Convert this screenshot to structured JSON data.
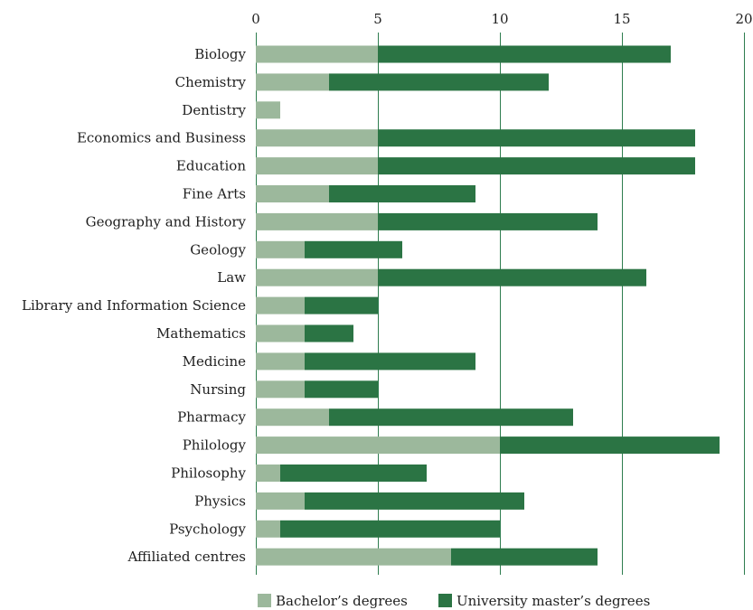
{
  "chart_data": {
    "type": "bar",
    "orientation": "horizontal",
    "stacked": true,
    "xlim": [
      0,
      20
    ],
    "x_ticks": [
      "0",
      "5",
      "10",
      "15",
      "20"
    ],
    "x_tick_values": [
      0,
      5,
      10,
      15,
      20
    ],
    "grid": true,
    "legend_position": "bottom",
    "categories": [
      "Biology",
      "Chemistry",
      "Dentistry",
      "Economics and Business",
      "Education",
      "Fine Arts",
      "Geography and History",
      "Geology",
      "Law",
      "Library and Information Science",
      "Mathematics",
      "Medicine",
      "Nursing",
      "Pharmacy",
      "Philology",
      "Philosophy",
      "Physics",
      "Psychology",
      "Affiliated centres"
    ],
    "series": [
      {
        "name": "Bachelor’s degrees",
        "color": "#9cb89c",
        "values": [
          5,
          3,
          1,
          5,
          5,
          3,
          5,
          2,
          5,
          2,
          2,
          2,
          2,
          3,
          10,
          1,
          2,
          1,
          8
        ]
      },
      {
        "name": "University master’s degrees",
        "color": "#2b7444",
        "values": [
          12,
          9,
          0,
          13,
          13,
          6,
          9,
          4,
          11,
          3,
          2,
          7,
          3,
          10,
          9,
          6,
          9,
          9,
          6
        ]
      }
    ]
  }
}
